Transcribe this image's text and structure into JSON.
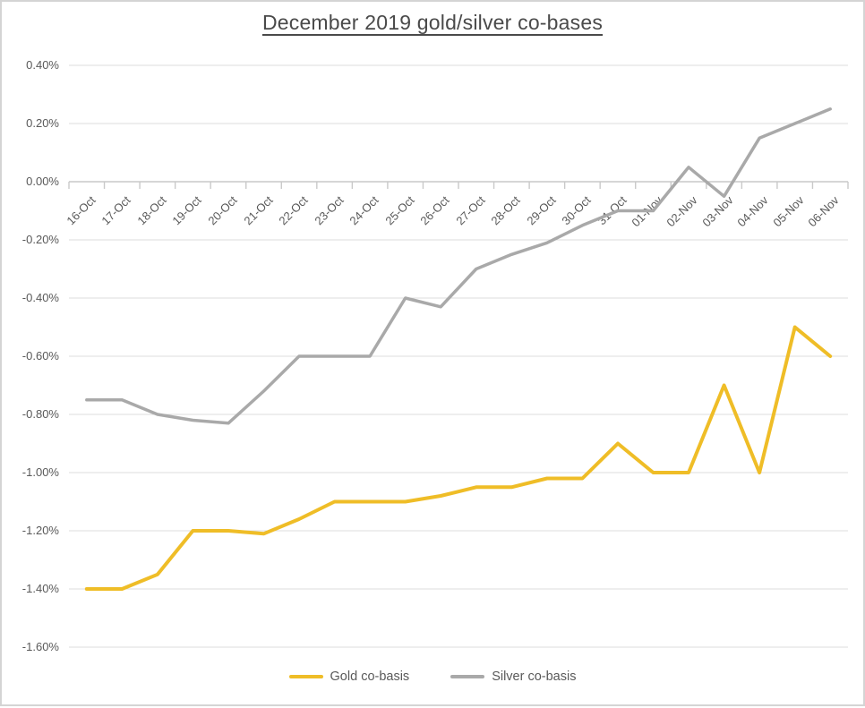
{
  "window": {
    "background": "#ffffff",
    "border_color": "#d4d4d4"
  },
  "chart_data": {
    "type": "line",
    "title": "December 2019 gold/silver co-bases",
    "categories": [
      "16-Oct",
      "17-Oct",
      "18-Oct",
      "19-Oct",
      "20-Oct",
      "21-Oct",
      "22-Oct",
      "23-Oct",
      "24-Oct",
      "25-Oct",
      "26-Oct",
      "27-Oct",
      "28-Oct",
      "29-Oct",
      "30-Oct",
      "31-Oct",
      "01-Nov",
      "02-Nov",
      "03-Nov",
      "04-Nov",
      "05-Nov",
      "06-Nov"
    ],
    "series": [
      {
        "name": "Gold co-basis",
        "color": "#EFBD27",
        "stroke_width": 4,
        "values": [
          -1.4,
          -1.4,
          -1.35,
          -1.2,
          -1.2,
          -1.21,
          -1.16,
          -1.1,
          -1.1,
          -1.1,
          -1.08,
          -1.05,
          -1.05,
          -1.02,
          -1.02,
          -0.9,
          -1.0,
          -1.0,
          -0.7,
          -1.0,
          -0.5,
          -0.6
        ]
      },
      {
        "name": "Silver co-basis",
        "color": "#A9A9A9",
        "stroke_width": 3.5,
        "values": [
          -0.75,
          -0.75,
          -0.8,
          -0.82,
          -0.83,
          -0.72,
          -0.6,
          -0.6,
          -0.6,
          -0.4,
          -0.43,
          -0.3,
          -0.25,
          -0.21,
          -0.15,
          -0.1,
          -0.1,
          0.05,
          -0.05,
          0.15,
          0.2,
          0.25
        ]
      }
    ],
    "xlabel": "",
    "ylabel": "",
    "ylim": [
      -1.6,
      0.4
    ],
    "y_tick_step": 0.2,
    "y_tick_labels": [
      "0.40%",
      "0.20%",
      "0.00%",
      "-0.20%",
      "-0.40%",
      "-0.60%",
      "-0.80%",
      "-1.00%",
      "-1.20%",
      "-1.40%",
      "-1.60%"
    ],
    "y_tick_values": [
      0.4,
      0.2,
      0.0,
      -0.2,
      -0.4,
      -0.6,
      -0.8,
      -1.0,
      -1.2,
      -1.4,
      -1.6
    ],
    "grid": true,
    "x_axis_cross_value": 0.0,
    "legend_position": "bottom",
    "value_unit": "percent"
  },
  "legend": {
    "items": [
      {
        "label": "Gold co-basis",
        "color": "#EFBD27"
      },
      {
        "label": "Silver co-basis",
        "color": "#A9A9A9"
      }
    ]
  },
  "styles": {
    "gridline_color": "#dcdcdc",
    "axis_color": "#c9c9c9",
    "tick_text_color": "#595959",
    "title_color": "#4a4a4a"
  }
}
